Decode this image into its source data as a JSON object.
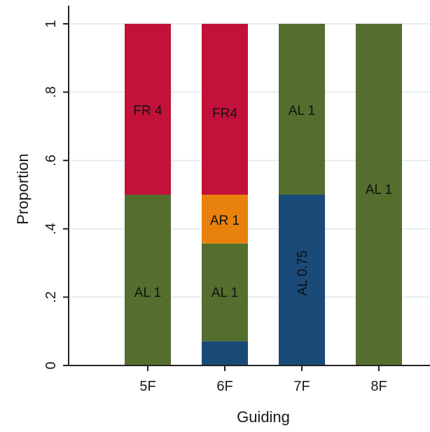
{
  "chart_data": {
    "type": "bar",
    "stacked": true,
    "xlabel": "Guiding",
    "ylabel": "Proportion",
    "ylim": [
      0,
      1
    ],
    "yticks": [
      0,
      0.2,
      0.4,
      0.6,
      0.8,
      1
    ],
    "ytick_labels": [
      "0",
      ".2",
      ".4",
      ".6",
      ".8",
      "1"
    ],
    "categories": [
      "5F",
      "6F",
      "7F",
      "8F"
    ],
    "grid": true,
    "bars": [
      {
        "category": "5F",
        "segments": [
          {
            "from": 0,
            "to": 0.5,
            "color": "#546e2e",
            "label": "AL 1"
          },
          {
            "from": 0.5,
            "to": 1.0,
            "color": "#c2123a",
            "label": "FR 4"
          }
        ]
      },
      {
        "category": "6F",
        "segments": [
          {
            "from": 0,
            "to": 0.071,
            "color": "#1a4a78",
            "label": ""
          },
          {
            "from": 0.071,
            "to": 0.357,
            "color": "#546e2e",
            "label": "AL 1"
          },
          {
            "from": 0.357,
            "to": 0.5,
            "color": "#e8820c",
            "label": "AR 1"
          },
          {
            "from": 0.5,
            "to": 1.0,
            "color": "#c2123a",
            "label": "FR4"
          }
        ]
      },
      {
        "category": "7F",
        "segments": [
          {
            "from": 0,
            "to": 0.5,
            "color": "#1a4a78",
            "label": "AL 0.75",
            "vertical": true
          },
          {
            "from": 0.5,
            "to": 1.0,
            "color": "#546e2e",
            "label": "AL 1"
          }
        ]
      },
      {
        "category": "8F",
        "segments": [
          {
            "from": 0,
            "to": 1.0,
            "color": "#546e2e",
            "label": "AL 1"
          }
        ]
      }
    ],
    "colors": {
      "grid": "#e6ecef",
      "axis": "#222222"
    }
  }
}
